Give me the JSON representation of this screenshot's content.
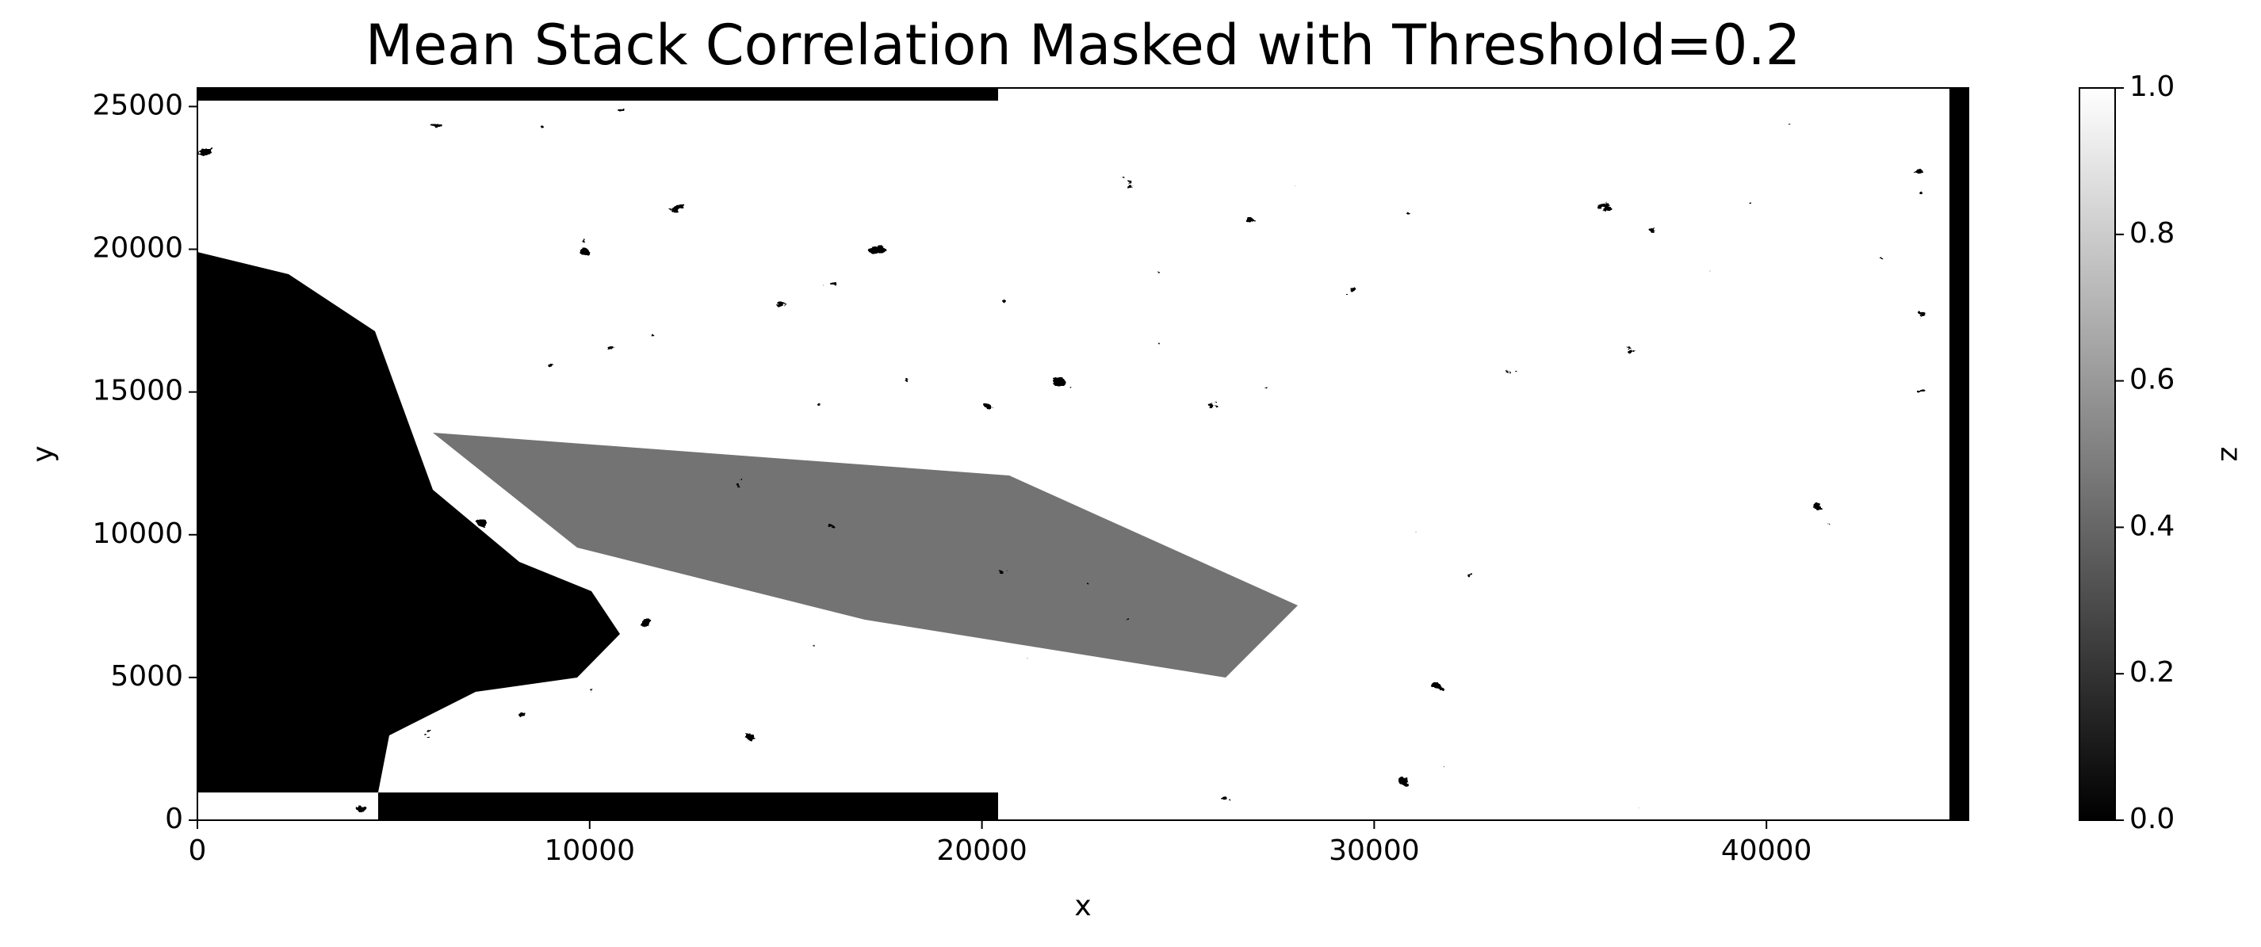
{
  "chart_data": {
    "type": "heatmap",
    "title": "Mean Stack Correlation Masked with Threshold=0.2",
    "xlabel": "x",
    "ylabel": "y",
    "xlim": [
      0,
      45150
    ],
    "ylim": [
      0,
      25650
    ],
    "xticks": [
      0,
      10000,
      20000,
      30000,
      40000
    ],
    "yticks": [
      0,
      5000,
      10000,
      15000,
      20000,
      25000
    ],
    "colorbar": {
      "label": "z",
      "lim": [
        0,
        1
      ],
      "colors": [
        "#000000",
        "#ffffff"
      ],
      "ticks": [
        {
          "value": 0,
          "label": "0.0"
        },
        0.2,
        0.4,
        0.6,
        0.8,
        {
          "value": 1,
          "label": "1.0"
        }
      ]
    }
  }
}
